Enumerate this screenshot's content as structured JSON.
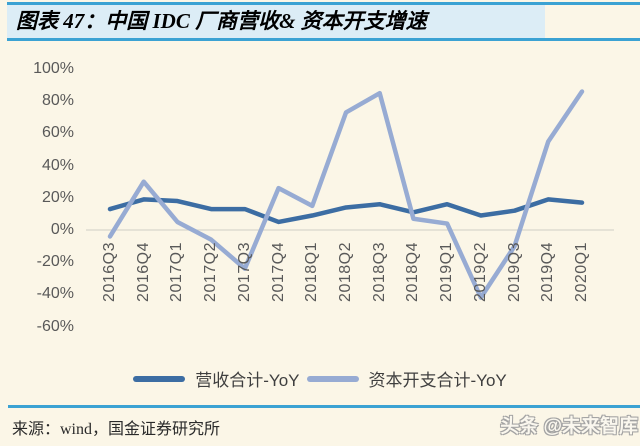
{
  "header": {
    "title": "图表 47：中国 IDC 厂商营收& 资本开支增速"
  },
  "chart_data": {
    "type": "line",
    "title": "中国 IDC 厂商营收& 资本开支增速",
    "xlabel": "",
    "ylabel": "",
    "categories": [
      "2016Q3",
      "2016Q4",
      "2017Q1",
      "2017Q2",
      "2017Q3",
      "2017Q4",
      "2018Q1",
      "2018Q2",
      "2018Q3",
      "2018Q4",
      "2019Q1",
      "2019Q2",
      "2019Q3",
      "2019Q4",
      "2020Q1"
    ],
    "series": [
      {
        "name": "营收合计-YoY",
        "color": "#3c6da3",
        "values": [
          13,
          19,
          18,
          13,
          13,
          5,
          9,
          14,
          16,
          11,
          16,
          9,
          12,
          19,
          17
        ]
      },
      {
        "name": "资本开支合计-YoY",
        "color": "#97abd3",
        "values": [
          -4,
          30,
          5,
          -6,
          -24,
          26,
          15,
          73,
          85,
          7,
          4,
          -42,
          -10,
          55,
          86
        ]
      }
    ],
    "yticks": [
      100,
      80,
      60,
      40,
      20,
      0,
      -20,
      -40,
      -60
    ],
    "ytick_suffix": "%",
    "ylim": [
      -60,
      100
    ],
    "grid": "zero-line-only",
    "legend_position": "bottom"
  },
  "footer": {
    "source": "来源：wind，国金证券研究所",
    "watermark": "头条 @未来智库"
  },
  "colors": {
    "page_bg": "#fbf6e7",
    "title_bar_bg": "#dcedf6",
    "accent_blue": "#3ba2d3",
    "grid_line": "#d8d6cc",
    "axis_text": "#595959",
    "legend_text": "#3f3f3f"
  }
}
